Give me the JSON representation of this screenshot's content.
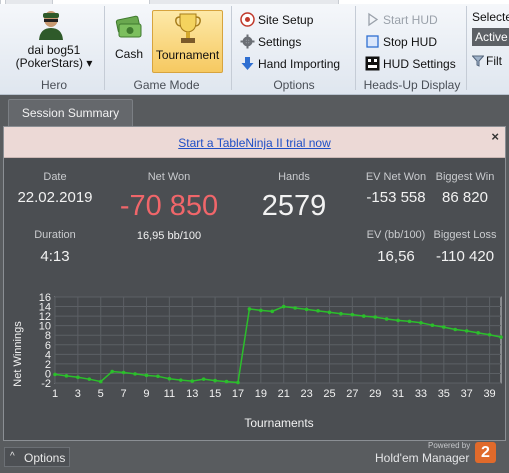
{
  "ribbon": {
    "hero": {
      "name_line1": "dai bog51",
      "name_line2": "(PokerStars) ▾",
      "group": "Hero"
    },
    "game_mode": {
      "cash": "Cash",
      "tournament": "Tournament",
      "group": "Game Mode"
    },
    "options": {
      "site_setup": "Site Setup",
      "settings": "Settings",
      "hand_importing": "Hand Importing",
      "group": "Options"
    },
    "heads_up": {
      "start_hud": "Start HUD",
      "stop_hud": "Stop HUD",
      "hud_settings": "HUD Settings",
      "group": "Heads-Up Display"
    },
    "selected": {
      "label": "Selecte",
      "active": "Active",
      "filter": "Filt"
    }
  },
  "tab": {
    "label": "Session Summary"
  },
  "trial": {
    "link": "Start a TableNinja II trial now",
    "close": "×"
  },
  "stats": {
    "date_label": "Date",
    "date_value": "22.02.2019",
    "duration_label": "Duration",
    "duration_value": "4:13",
    "netwon_label": "Net Won",
    "netwon_value": "-70 850",
    "netwon_sub": "16,95 bb/100",
    "hands_label": "Hands",
    "hands_value": "2579",
    "ev_label": "EV Net Won",
    "ev_value": "-153 558",
    "evbb_label": "EV (bb/100)",
    "evbb_value": "16,56",
    "bigwin_label": "Biggest Win",
    "bigwin_value": "86 820",
    "bigloss_label": "Biggest Loss",
    "bigloss_value": "-110 420"
  },
  "chart_data": {
    "type": "line",
    "xlabel": "Tournaments",
    "ylabel": "Net Winnings",
    "ylim": [
      -2,
      16
    ],
    "yticks": [
      -2,
      0,
      2,
      4,
      6,
      8,
      10,
      12,
      14,
      16
    ],
    "xticks": [
      1,
      3,
      5,
      7,
      9,
      11,
      13,
      15,
      17,
      19,
      21,
      23,
      25,
      27,
      29,
      31,
      33,
      35,
      37,
      39
    ],
    "x": [
      1,
      2,
      3,
      4,
      5,
      6,
      7,
      8,
      9,
      10,
      11,
      12,
      13,
      14,
      15,
      16,
      17,
      18,
      19,
      20,
      21,
      22,
      23,
      24,
      25,
      26,
      27,
      28,
      29,
      30,
      31,
      32,
      33,
      34,
      35,
      36,
      37,
      38,
      39,
      40
    ],
    "values": [
      -0.2,
      -0.5,
      -0.8,
      -1.2,
      -1.7,
      0.4,
      0.2,
      -0.1,
      -0.4,
      -0.6,
      -1.1,
      -1.4,
      -1.6,
      -1.2,
      -1.5,
      -1.7,
      -1.9,
      13.5,
      13.2,
      13.0,
      14.0,
      13.7,
      13.4,
      13.1,
      12.8,
      12.5,
      12.3,
      12.0,
      11.8,
      11.4,
      11.1,
      10.9,
      10.6,
      10.1,
      9.7,
      9.2,
      8.9,
      8.5,
      8.1,
      7.6
    ],
    "grid": true,
    "line_color": "#2bbf2b"
  },
  "bottom": {
    "options": "Options",
    "caret": "^",
    "powered": "Powered by",
    "brand": "Hold'em Manager",
    "badge": "2"
  }
}
